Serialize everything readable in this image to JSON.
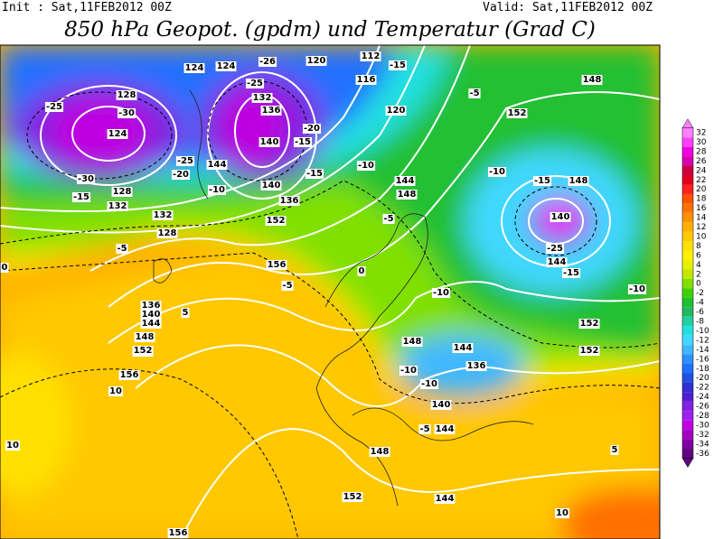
{
  "header": {
    "init": "Init : Sat,11FEB2012 00Z",
    "valid": "Valid: Sat,11FEB2012 00Z",
    "title": "850 hPa Geopot. (gpdm) und Temperatur (Grad C)"
  },
  "colorbar": {
    "ticks": [
      32,
      30,
      28,
      26,
      24,
      22,
      20,
      18,
      16,
      14,
      12,
      10,
      8,
      6,
      4,
      2,
      0,
      -2,
      -4,
      -6,
      -8,
      -10,
      -12,
      -14,
      -16,
      -18,
      -20,
      -22,
      -24,
      -26,
      -28,
      -30,
      -32,
      -34,
      -36
    ],
    "colors": [
      "#ff80ff",
      "#ff40ff",
      "#f000e0",
      "#d800b0",
      "#c80040",
      "#e00020",
      "#ff2020",
      "#ff5000",
      "#ff7000",
      "#ff9000",
      "#ffb000",
      "#ffc800",
      "#ffe000",
      "#fff000",
      "#e8f000",
      "#c0e800",
      "#80e000",
      "#40d000",
      "#20c030",
      "#20b860",
      "#20d0a0",
      "#20e0e0",
      "#40d8ff",
      "#40b8ff",
      "#3090ff",
      "#2070ff",
      "#2050e0",
      "#3030d0",
      "#5020d0",
      "#8020e0",
      "#a020f0",
      "#c000e0",
      "#a000c0",
      "#8000a0",
      "#600080"
    ]
  },
  "map_labels": [
    "-25",
    "-30",
    "128",
    "124",
    "-30",
    "-15",
    "128",
    "132",
    "-25",
    "-20",
    "124",
    "124",
    "-26",
    "120",
    "132",
    "-25",
    "136",
    "140",
    "-15",
    "-20",
    "144",
    "-10",
    "136",
    "140",
    "-15",
    "-10",
    "112",
    "116",
    "120",
    "-15",
    "-5",
    "148",
    "152",
    "144",
    "148",
    "-10",
    "-15",
    "140",
    "-25",
    "144",
    "-15",
    "148",
    "132",
    "128",
    "-5",
    "0",
    "136",
    "140",
    "144",
    "148",
    "152",
    "-5",
    "152",
    "156",
    "-10",
    "0",
    "144",
    "148",
    "-10",
    "-10",
    "136",
    "140",
    "-5",
    "144",
    "148",
    "152",
    "5",
    "10",
    "10",
    "156",
    "152",
    "144",
    "-5",
    "152",
    "152",
    "-10",
    "5",
    "10",
    "156"
  ]
}
